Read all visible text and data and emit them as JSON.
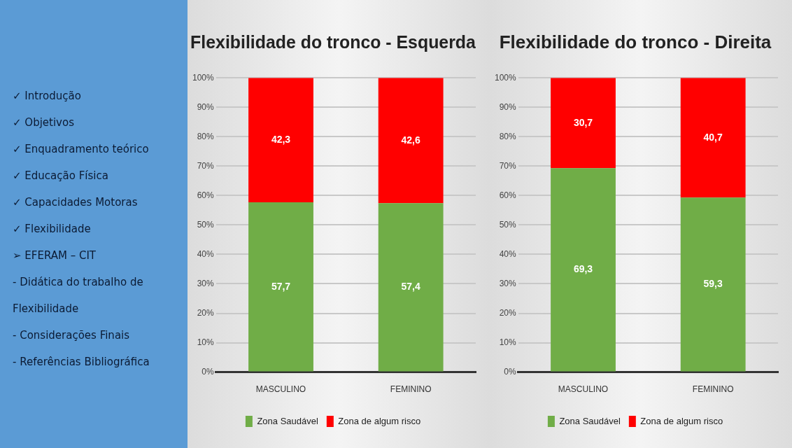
{
  "chart_data": [
    {
      "type": "other",
      "annotations": [
        "✓ Introdução",
        "✓ Objetivos",
        "✓ Enquadramento teórico",
        "✓ Educação Física",
        "✓ Capacidades Motoras",
        "✓ Flexibilidade",
        "➢ EFERAM – CIT",
        "- Didática do trabalho de",
        "Flexibilidade",
        "- Considerações Finais",
        "- Referências Bibliográfica"
      ]
    },
    {
      "type": "bar",
      "title": "Flexibilidade do tronco - Esquerda",
      "categories": [
        "MASCULINO",
        "FEMININO"
      ],
      "stacked": true,
      "ylim": [
        0,
        100
      ],
      "yticks": [
        {
          "value": 0,
          "label": "0%"
        },
        {
          "value": 10,
          "label": "10%"
        },
        {
          "value": 20,
          "label": "20%"
        },
        {
          "value": 30,
          "label": "30%"
        },
        {
          "value": 40,
          "label": "40%"
        },
        {
          "value": 50,
          "label": "50%"
        },
        {
          "value": 60,
          "label": "60%"
        },
        {
          "value": 70,
          "label": "70%"
        },
        {
          "value": 80,
          "label": "80%"
        },
        {
          "value": 90,
          "label": "90%"
        },
        {
          "value": 100,
          "label": "100%"
        }
      ],
      "grid": "y",
      "legend": "bottom",
      "series": [
        {
          "name": "Zona Saudável",
          "color": "#70ad47",
          "values": [
            57.7,
            57.4
          ],
          "value_labels": [
            "57,7",
            "57,4"
          ]
        },
        {
          "name": "Zona de algum risco",
          "color": "#ff0000",
          "values": [
            42.3,
            42.6
          ],
          "value_labels": [
            "42,3",
            "42,6"
          ]
        }
      ]
    },
    {
      "type": "bar",
      "title": "Flexibilidade do tronco - Direita",
      "categories": [
        "MASCULINO",
        "FEMININO"
      ],
      "stacked": true,
      "ylim": [
        0,
        100
      ],
      "yticks": [
        {
          "value": 0,
          "label": "0%"
        },
        {
          "value": 10,
          "label": "10%"
        },
        {
          "value": 20,
          "label": "20%"
        },
        {
          "value": 30,
          "label": "30%"
        },
        {
          "value": 40,
          "label": "40%"
        },
        {
          "value": 50,
          "label": "50%"
        },
        {
          "value": 60,
          "label": "60%"
        },
        {
          "value": 70,
          "label": "70%"
        },
        {
          "value": 80,
          "label": "80%"
        },
        {
          "value": 90,
          "label": "90%"
        },
        {
          "value": 100,
          "label": "100%"
        }
      ],
      "grid": "y",
      "legend": "bottom",
      "series": [
        {
          "name": "Zona Saudável",
          "color": "#70ad47",
          "values": [
            69.3,
            59.3
          ],
          "value_labels": [
            "69,3",
            "59,3"
          ]
        },
        {
          "name": "Zona de algum risco",
          "color": "#ff0000",
          "values": [
            30.7,
            40.7
          ],
          "value_labels": [
            "30,7",
            "40,7"
          ]
        }
      ]
    }
  ]
}
